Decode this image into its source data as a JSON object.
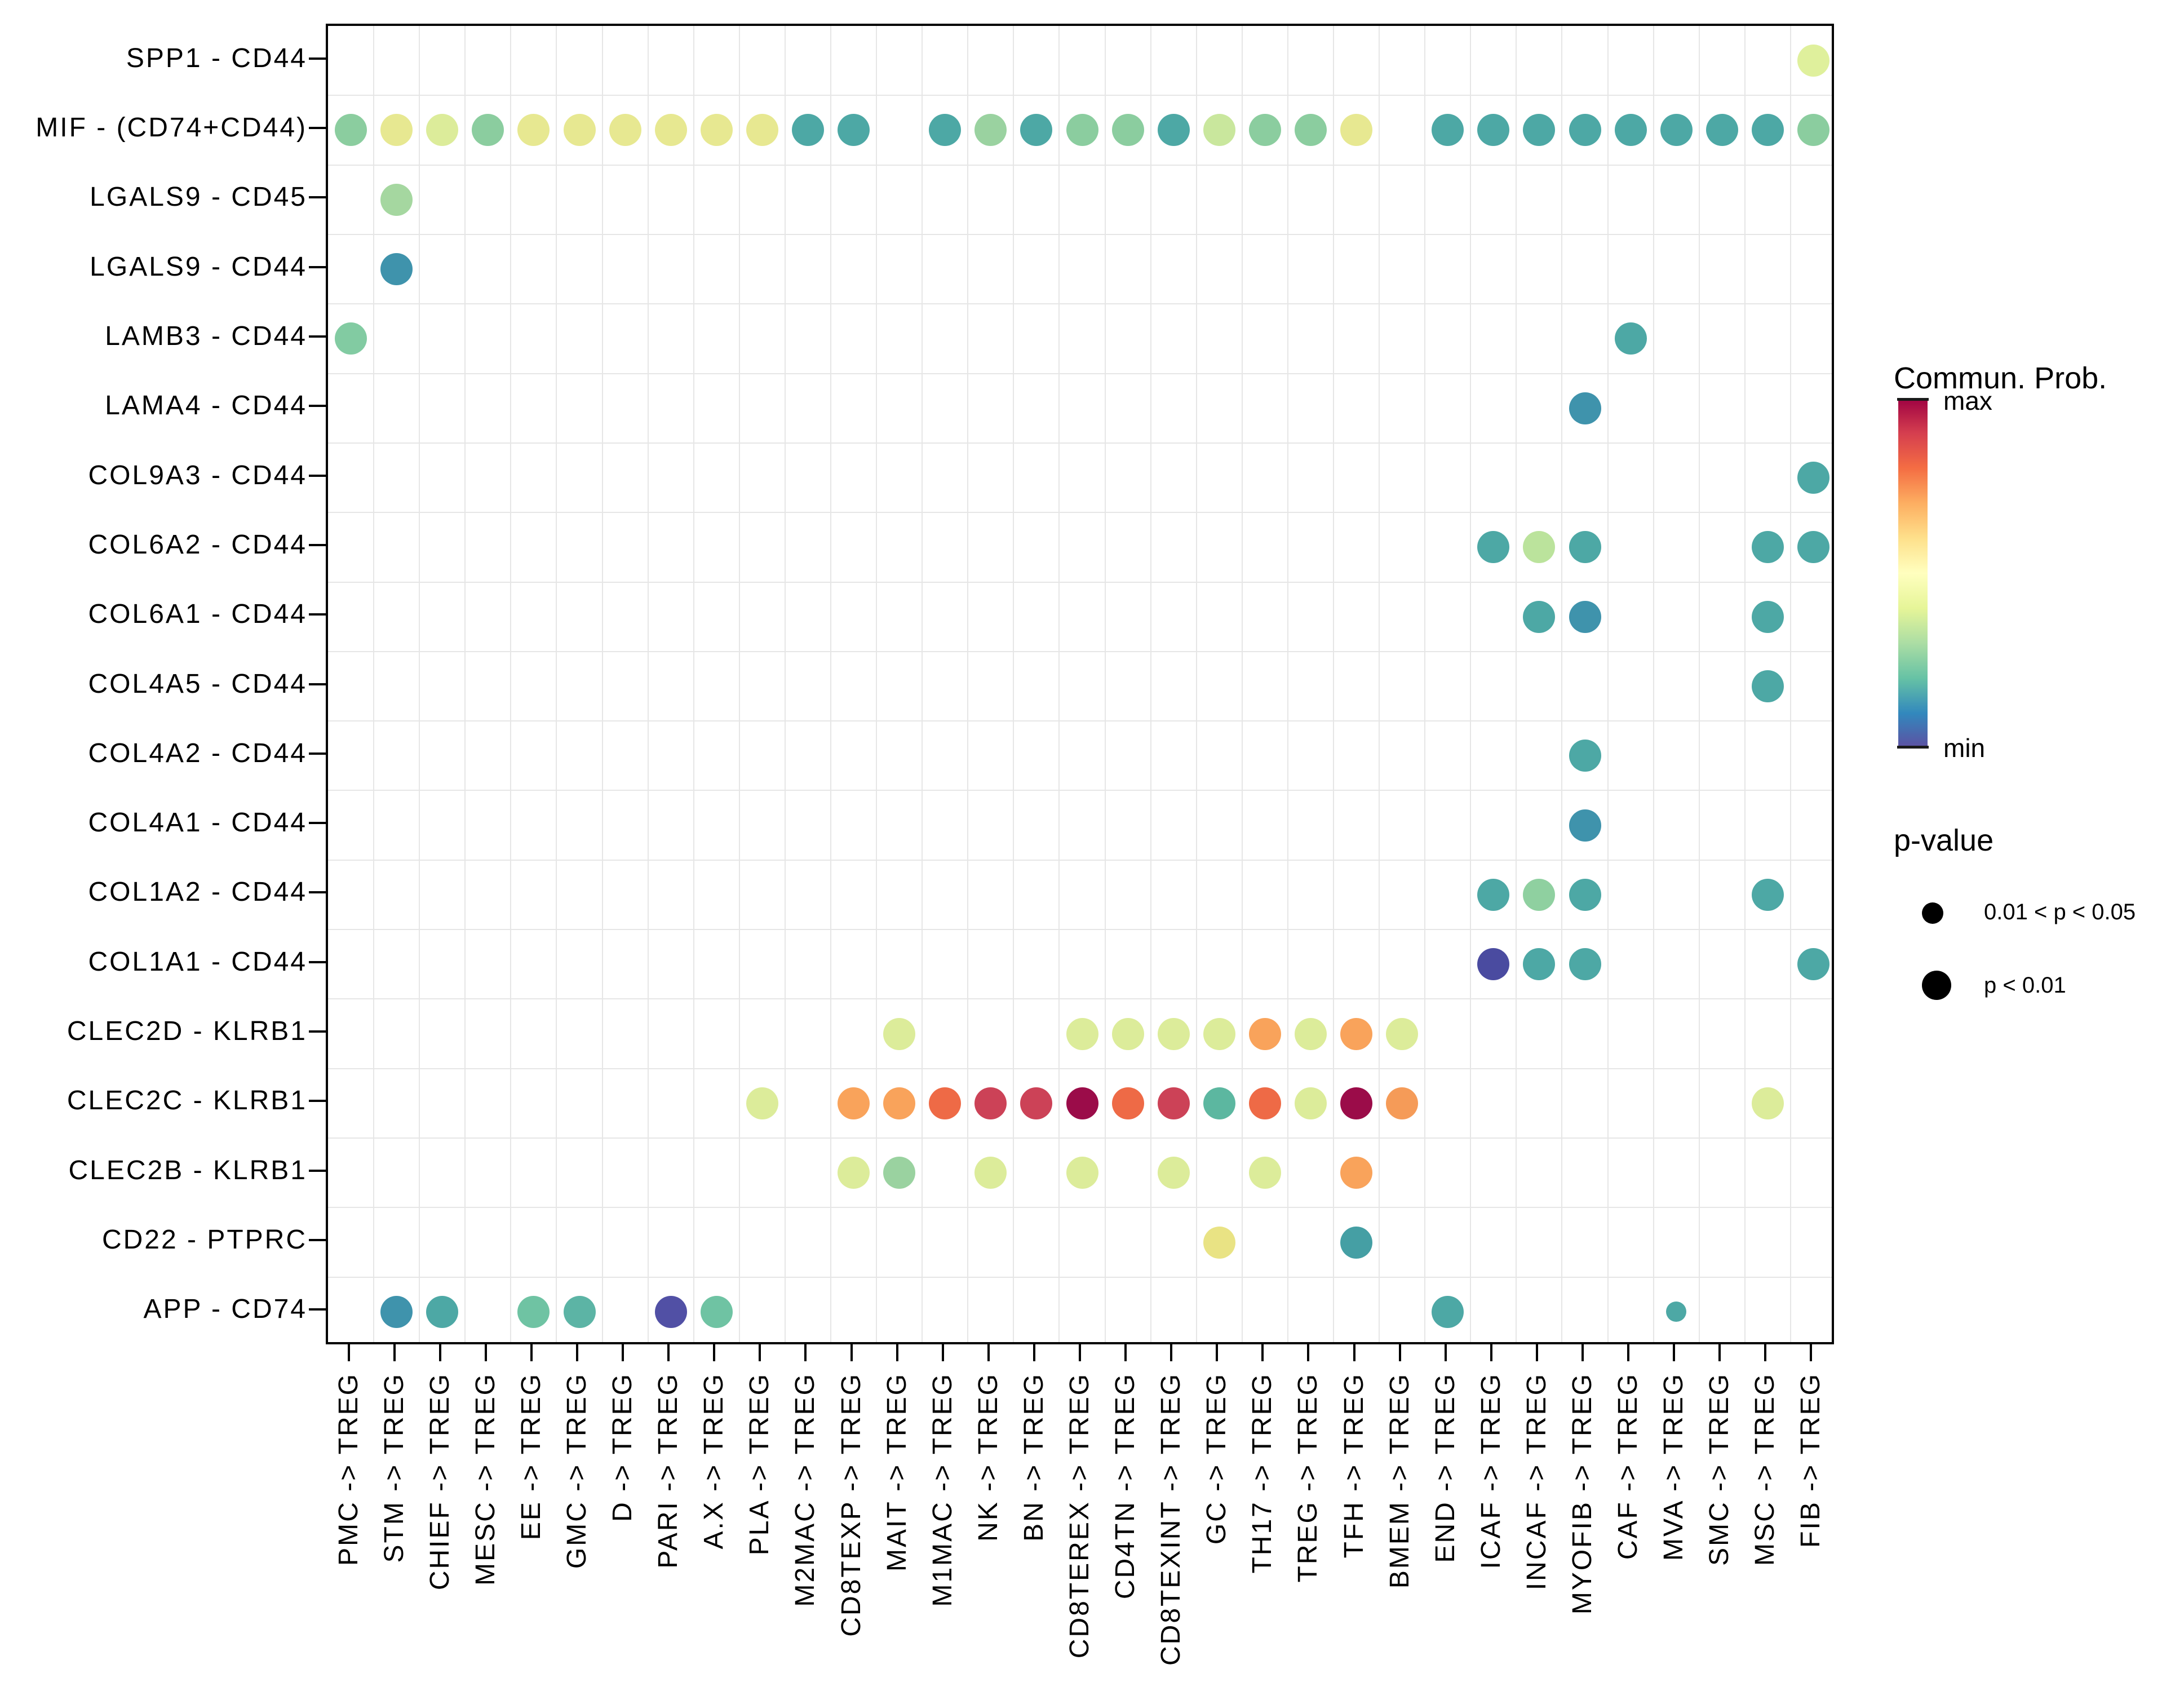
{
  "chart_data": {
    "type": "bubble-matrix",
    "description": "Dot plot of communication probability for ligand-receptor pairs (rows) across sender->receiver cell pairs (columns); dot color = communication probability, dot size = p-value bucket",
    "x_suffix": " -> TREG",
    "x_sources": [
      "PMC",
      "STM",
      "CHIEF",
      "MESC",
      "EE",
      "GMC",
      "D",
      "PARI",
      "A.X",
      "PLA",
      "M2MAC",
      "CD8TEXP",
      "MAIT",
      "M1MAC",
      "NK",
      "BN",
      "CD8TEREX",
      "CD4TN",
      "CD8TEXINT",
      "GC",
      "TH17",
      "TREG",
      "TFH",
      "BMEM",
      "END",
      "ICAF",
      "INCAF",
      "MYOFIB",
      "CAF",
      "MVA",
      "SMC",
      "MSC",
      "FIB"
    ],
    "y_categories": [
      "SPP1 - CD44",
      "MIF - (CD74+CD44)",
      "LGALS9 - CD45",
      "LGALS9 - CD44",
      "LAMB3 - CD44",
      "LAMA4 - CD44",
      "COL9A3 - CD44",
      "COL6A2 - CD44",
      "COL6A1 - CD44",
      "COL4A5 - CD44",
      "COL4A2 - CD44",
      "COL4A1 - CD44",
      "COL1A2 - CD44",
      "COL1A1 - CD44",
      "CLEC2D - KLRB1",
      "CLEC2C - KLRB1",
      "CLEC2B - KLRB1",
      "CD22 - PTPRC",
      "APP - CD74"
    ],
    "rows": [
      {
        "pair": "SPP1 - CD44",
        "dots": [
          {
            "source": "FIB",
            "color": "#DFF09C"
          }
        ]
      },
      {
        "pair": "MIF - (CD74+CD44)",
        "dots": [
          {
            "source": "PMC",
            "color": "#8BCD9F"
          },
          {
            "source": "STM",
            "color": "#E7E891"
          },
          {
            "source": "CHIEF",
            "color": "#DCEC9A"
          },
          {
            "source": "MESC",
            "color": "#8BCD9F"
          },
          {
            "source": "EE",
            "color": "#E7E891"
          },
          {
            "source": "GMC",
            "color": "#E7E891"
          },
          {
            "source": "D",
            "color": "#E7E891"
          },
          {
            "source": "PARI",
            "color": "#E7E891"
          },
          {
            "source": "A.X",
            "color": "#E7E891"
          },
          {
            "source": "PLA",
            "color": "#E7E891"
          },
          {
            "source": "M2MAC",
            "color": "#4DA8A5"
          },
          {
            "source": "CD8TEXP",
            "color": "#4DA8A5"
          },
          {
            "source": "M1MAC",
            "color": "#4DA8A5"
          },
          {
            "source": "NK",
            "color": "#9AD2A0"
          },
          {
            "source": "BN",
            "color": "#4DA8A5"
          },
          {
            "source": "CD8TEREX",
            "color": "#8BCD9F"
          },
          {
            "source": "CD4TN",
            "color": "#8BCD9F"
          },
          {
            "source": "CD8TEXINT",
            "color": "#4DA8A5"
          },
          {
            "source": "GC",
            "color": "#C9E79D"
          },
          {
            "source": "TH17",
            "color": "#8BCD9F"
          },
          {
            "source": "TREG",
            "color": "#8BCD9F"
          },
          {
            "source": "TFH",
            "color": "#E7E891"
          },
          {
            "source": "END",
            "color": "#4DA8A5"
          },
          {
            "source": "ICAF",
            "color": "#4DA8A5"
          },
          {
            "source": "INCAF",
            "color": "#4DA8A5"
          },
          {
            "source": "MYOFIB",
            "color": "#4DA8A5"
          },
          {
            "source": "CAF",
            "color": "#4DA8A5"
          },
          {
            "source": "MVA",
            "color": "#4DA8A5"
          },
          {
            "source": "SMC",
            "color": "#4DA8A5"
          },
          {
            "source": "MSC",
            "color": "#4DA8A5"
          },
          {
            "source": "FIB",
            "color": "#8BCD9F"
          }
        ]
      },
      {
        "pair": "LGALS9 - CD45",
        "dots": [
          {
            "source": "STM",
            "color": "#A5D7A0"
          }
        ]
      },
      {
        "pair": "LGALS9 - CD44",
        "dots": [
          {
            "source": "STM",
            "color": "#3F93AC"
          }
        ]
      },
      {
        "pair": "LAMB3 - CD44",
        "dots": [
          {
            "source": "PMC",
            "color": "#82CBA2"
          },
          {
            "source": "CAF",
            "color": "#4DA8A5"
          }
        ]
      },
      {
        "pair": "LAMA4 - CD44",
        "dots": [
          {
            "source": "MYOFIB",
            "color": "#3F93AC"
          }
        ]
      },
      {
        "pair": "COL9A3 - CD44",
        "dots": [
          {
            "source": "FIB",
            "color": "#4DA8A5"
          }
        ]
      },
      {
        "pair": "COL6A2 - CD44",
        "dots": [
          {
            "source": "ICAF",
            "color": "#4DA8A5"
          },
          {
            "source": "INCAF",
            "color": "#BBE39C"
          },
          {
            "source": "MYOFIB",
            "color": "#4DA8A5"
          },
          {
            "source": "MSC",
            "color": "#4DA8A5"
          },
          {
            "source": "FIB",
            "color": "#4DA8A5"
          }
        ]
      },
      {
        "pair": "COL6A1 - CD44",
        "dots": [
          {
            "source": "INCAF",
            "color": "#4DA8A5"
          },
          {
            "source": "MYOFIB",
            "color": "#3F93AC"
          },
          {
            "source": "MSC",
            "color": "#4DA8A5"
          }
        ]
      },
      {
        "pair": "COL4A5 - CD44",
        "dots": [
          {
            "source": "MSC",
            "color": "#4DA8A5"
          }
        ]
      },
      {
        "pair": "COL4A2 - CD44",
        "dots": [
          {
            "source": "MYOFIB",
            "color": "#4DA8A5"
          }
        ]
      },
      {
        "pair": "COL4A1 - CD44",
        "dots": [
          {
            "source": "MYOFIB",
            "color": "#3F93AC"
          }
        ]
      },
      {
        "pair": "COL1A2 - CD44",
        "dots": [
          {
            "source": "ICAF",
            "color": "#4DA8A5"
          },
          {
            "source": "INCAF",
            "color": "#8FD0A0"
          },
          {
            "source": "MYOFIB",
            "color": "#4DA8A5"
          },
          {
            "source": "MSC",
            "color": "#4DA8A5"
          }
        ]
      },
      {
        "pair": "COL1A1 - CD44",
        "dots": [
          {
            "source": "ICAF",
            "color": "#4A4BA0"
          },
          {
            "source": "INCAF",
            "color": "#4DA8A5"
          },
          {
            "source": "MYOFIB",
            "color": "#4DA8A5"
          },
          {
            "source": "FIB",
            "color": "#4DA8A5"
          }
        ]
      },
      {
        "pair": "CLEC2D - KLRB1",
        "dots": [
          {
            "source": "MAIT",
            "color": "#DCEC9A"
          },
          {
            "source": "CD8TEREX",
            "color": "#DCEC9A"
          },
          {
            "source": "CD4TN",
            "color": "#DCEC9A"
          },
          {
            "source": "CD8TEXINT",
            "color": "#DCEC9A"
          },
          {
            "source": "GC",
            "color": "#DCEC9A"
          },
          {
            "source": "TH17",
            "color": "#F9A35B"
          },
          {
            "source": "TREG",
            "color": "#DCEC9A"
          },
          {
            "source": "TFH",
            "color": "#F9A35B"
          },
          {
            "source": "BMEM",
            "color": "#DCEC9A"
          }
        ]
      },
      {
        "pair": "CLEC2C - KLRB1",
        "dots": [
          {
            "source": "PLA",
            "color": "#DCEC9A"
          },
          {
            "source": "CD8TEXP",
            "color": "#F9A35B"
          },
          {
            "source": "MAIT",
            "color": "#F9A35B"
          },
          {
            "source": "M1MAC",
            "color": "#EE6A46"
          },
          {
            "source": "NK",
            "color": "#CC4257"
          },
          {
            "source": "BN",
            "color": "#CC4257"
          },
          {
            "source": "CD8TEREX",
            "color": "#9B0C49"
          },
          {
            "source": "CD4TN",
            "color": "#EE6A46"
          },
          {
            "source": "CD8TEXINT",
            "color": "#CC4257"
          },
          {
            "source": "GC",
            "color": "#5CB7A0"
          },
          {
            "source": "TH17",
            "color": "#EE6A46"
          },
          {
            "source": "TREG",
            "color": "#DCEC9A"
          },
          {
            "source": "TFH",
            "color": "#9B0C49"
          },
          {
            "source": "BMEM",
            "color": "#F59B58"
          },
          {
            "source": "MSC",
            "color": "#DCEC9A"
          }
        ]
      },
      {
        "pair": "CLEC2B - KLRB1",
        "dots": [
          {
            "source": "CD8TEXP",
            "color": "#DCEC9A"
          },
          {
            "source": "MAIT",
            "color": "#9AD2A0"
          },
          {
            "source": "NK",
            "color": "#DCEC9A"
          },
          {
            "source": "CD8TEREX",
            "color": "#DCEC9A"
          },
          {
            "source": "CD8TEXINT",
            "color": "#DCEC9A"
          },
          {
            "source": "TH17",
            "color": "#DCEC9A"
          },
          {
            "source": "TFH",
            "color": "#F9A35B"
          }
        ]
      },
      {
        "pair": "CD22 - PTPRC",
        "dots": [
          {
            "source": "GC",
            "color": "#E9E384"
          },
          {
            "source": "TFH",
            "color": "#459FA4"
          }
        ]
      },
      {
        "pair": "APP - CD74",
        "dots": [
          {
            "source": "STM",
            "color": "#3F93AC"
          },
          {
            "source": "CHIEF",
            "color": "#4DA8A5"
          },
          {
            "source": "EE",
            "color": "#6FC3A3"
          },
          {
            "source": "GMC",
            "color": "#5CB4A5"
          },
          {
            "source": "PARI",
            "color": "#5150A5"
          },
          {
            "source": "A.X",
            "color": "#6FC3A3"
          },
          {
            "source": "END",
            "color": "#4DA8A5"
          },
          {
            "source": "MVA",
            "color": "#4DA8A5",
            "size": "small"
          }
        ]
      }
    ],
    "legend": {
      "colorbar": {
        "title": "Commun. Prob.",
        "max_label": "max",
        "min_label": "min",
        "gradient_top_to_bottom": [
          "#9E0142",
          "#D53E4F",
          "#F46D43",
          "#FDAE61",
          "#FEE08B",
          "#FFFFBF",
          "#E6F598",
          "#ABDDA4",
          "#66C2A5",
          "#3288BD",
          "#5E4FA2"
        ]
      },
      "pvalue": {
        "title": "p-value",
        "items": [
          {
            "label": "0.01 < p < 0.05",
            "size": "small"
          },
          {
            "label": "p < 0.01",
            "size": "large"
          }
        ]
      }
    },
    "layout_hints": {
      "grid": "on",
      "legend_position": "right",
      "x_tick_rotation": 90
    }
  }
}
